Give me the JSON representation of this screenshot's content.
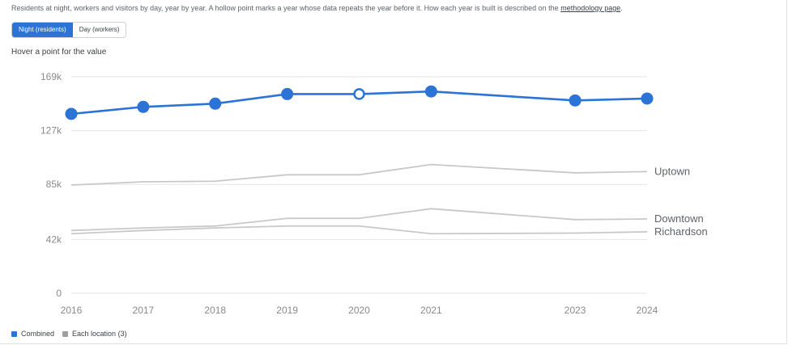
{
  "header": {
    "description": "Residents at night, workers and visitors by day, year by year. A hollow point marks a year whose data repeats the year before it. How each year is built is described on the",
    "link_text": "methodology page",
    "link_suffix": "."
  },
  "toggle": {
    "options": [
      "Night (residents)",
      "Day (workers)"
    ],
    "selected": "Night (residents)"
  },
  "hint": "Hover a point for the value",
  "legend": {
    "items": [
      {
        "label": "Combined",
        "color": "#2b73d6"
      },
      {
        "label": "Each location (3)",
        "color": "#9e9e9e"
      }
    ]
  },
  "colors": {
    "combined": "#2b73d6",
    "location": "#c8c8c8",
    "grid": "#e6e6e6",
    "axis_text": "#8a8a8a",
    "label_text": "#5f6368"
  },
  "chart_data": {
    "type": "line",
    "x": [
      2016,
      2017,
      2018,
      2019,
      2020,
      2021,
      2023,
      2024
    ],
    "x_tick_labels": [
      "2016",
      "2017",
      "2018",
      "2019",
      "2020",
      "2021",
      "2023",
      "2024"
    ],
    "y_ticks": [
      0,
      42000,
      85000,
      127000,
      169000
    ],
    "y_tick_labels": [
      "0",
      "42k",
      "85k",
      "127k",
      "169k"
    ],
    "ylim": [
      0,
      169000
    ],
    "grid": true,
    "series": [
      {
        "name": "Combined",
        "role": "combined",
        "values": [
          140000,
          145500,
          148000,
          155500,
          155500,
          157500,
          150500,
          152000
        ],
        "hollow": [
          false,
          false,
          false,
          false,
          true,
          false,
          false,
          false
        ]
      },
      {
        "name": "Uptown",
        "role": "location",
        "values": [
          84500,
          87000,
          87500,
          92500,
          92500,
          100500,
          94000,
          95000
        ]
      },
      {
        "name": "Downtown",
        "role": "location",
        "values": [
          49000,
          51000,
          52500,
          58500,
          58500,
          66000,
          57500,
          58000
        ]
      },
      {
        "name": "Richardson",
        "role": "location",
        "values": [
          46500,
          49000,
          51000,
          52500,
          52500,
          46500,
          47000,
          48000
        ]
      }
    ]
  }
}
